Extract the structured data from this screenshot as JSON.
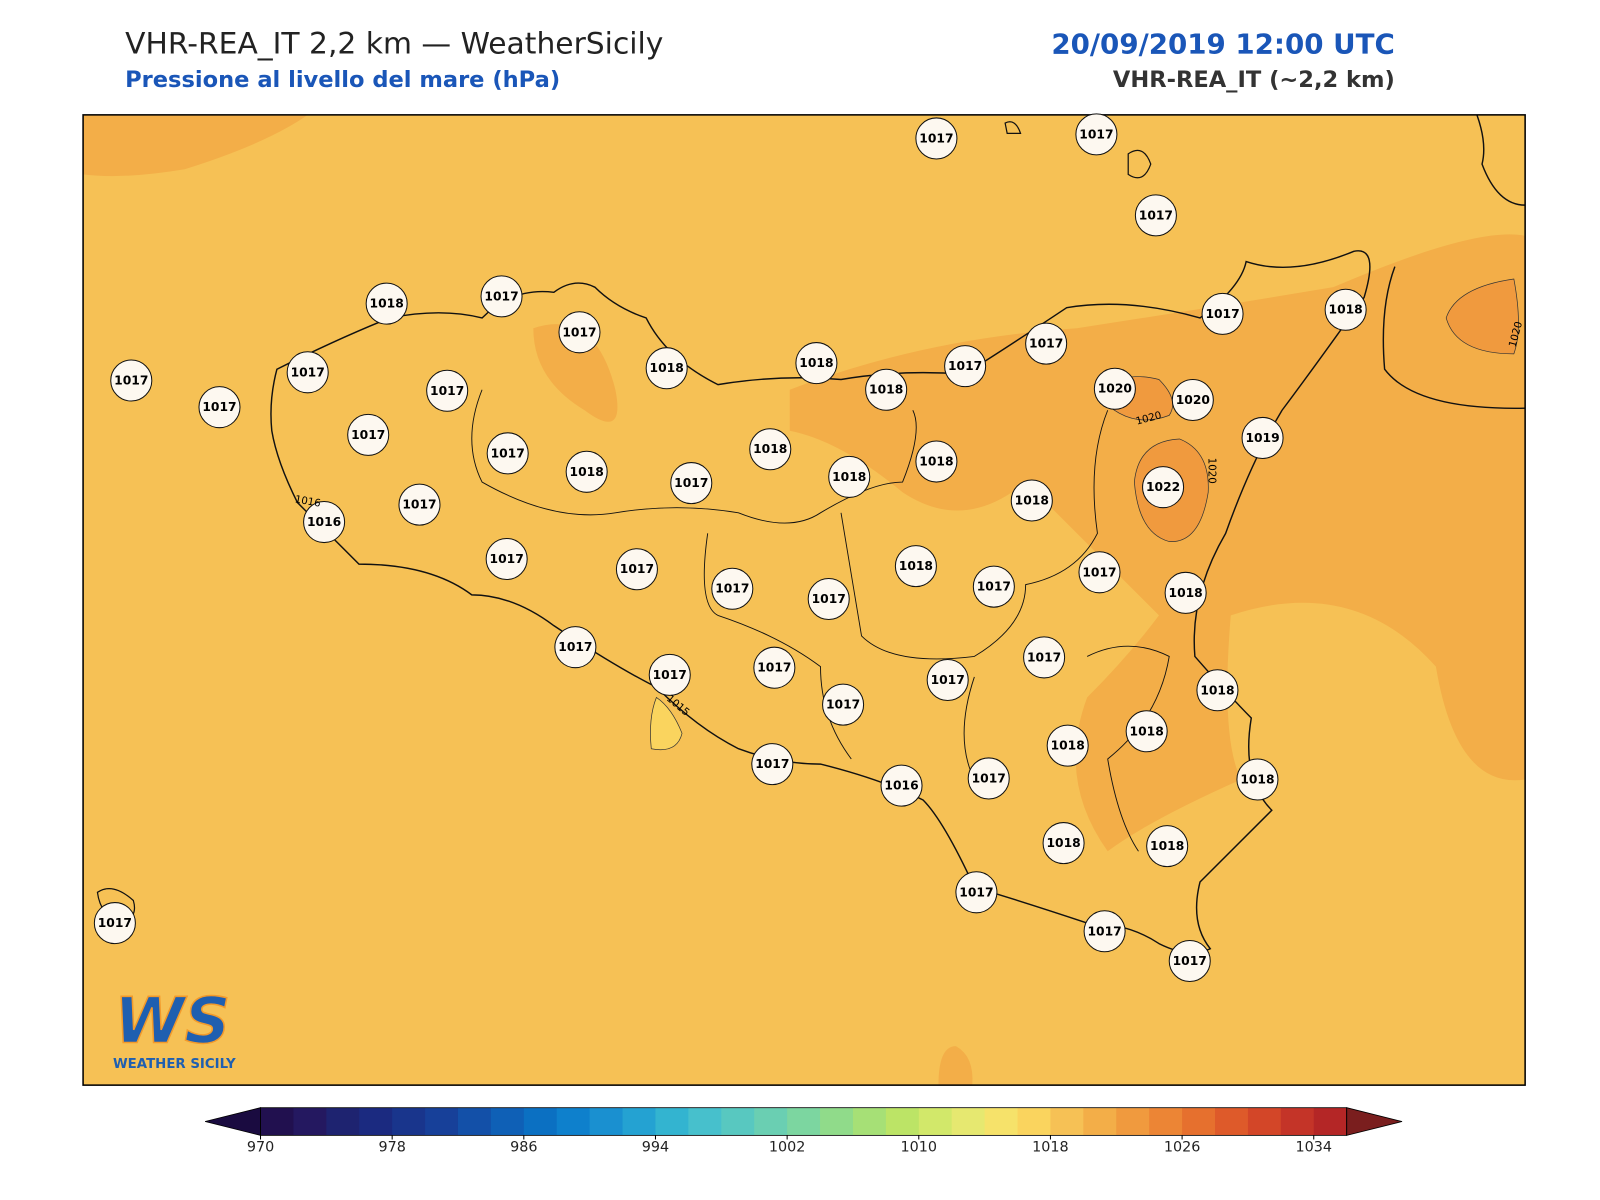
{
  "header": {
    "title": "VHR-REA_IT 2,2 km — WeatherSicily",
    "subtitle": "Pressione al livello del mare (hPa)",
    "date": "20/09/2019 12:00 UTC",
    "model": "VHR-REA_IT (~2,2 km)"
  },
  "stations": [
    1017,
    1017,
    1017,
    1018,
    1017,
    1017,
    1017,
    1018,
    1017,
    1017,
    1018,
    1018,
    1017,
    1017,
    1017,
    1017,
    1018,
    1020,
    1020,
    1017,
    1017,
    1018,
    1018,
    1019,
    1018,
    1017,
    1018,
    1022,
    1017,
    1016,
    1018,
    1017,
    1017,
    1018,
    1017,
    1017,
    1017,
    1017,
    1018,
    1017,
    1017,
    1017,
    1017,
    1017,
    1017,
    1018,
    1018,
    1018,
    1017,
    1016,
    1017,
    1018,
    1018,
    1018,
    1017,
    1017,
    1017,
    1017
  ],
  "contour_labels": [
    1016,
    1020,
    1020,
    1020,
    1015
  ],
  "logo": {
    "mark": "WS",
    "name": "WEATHER SICILY"
  },
  "colorbar": {
    "range": [
      970,
      1036
    ],
    "ticks": [
      970,
      978,
      986,
      994,
      1002,
      1010,
      1018,
      1026,
      1034
    ],
    "colors": [
      "#21104f",
      "#241860",
      "#1e2370",
      "#1b2a80",
      "#19358c",
      "#174099",
      "#1350a8",
      "#0f60b6",
      "#0b70c2",
      "#0e80cc",
      "#1a90d0",
      "#24a2d2",
      "#33b4d0",
      "#47c0cc",
      "#58c8c0",
      "#6acfb2",
      "#7cd6a0",
      "#90db8a",
      "#a6e076",
      "#bce466",
      "#d2e86a",
      "#e6e870",
      "#f6e26a",
      "#fad45e",
      "#f6c155",
      "#f3ae48",
      "#f09a3e",
      "#ec8535",
      "#e6702e",
      "#de5a2a",
      "#d34628",
      "#c43428",
      "#b42626"
    ],
    "under": "#1a0b40",
    "over": "#7a1e1e"
  }
}
